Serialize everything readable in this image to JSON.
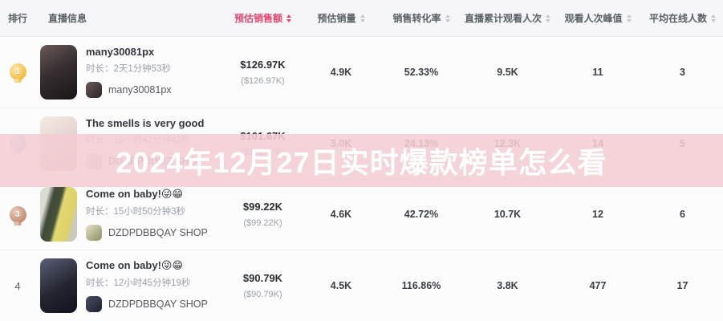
{
  "colors": {
    "accent": "#E0476F",
    "watermark_band": "#F2CDD4",
    "watermark_text": "#FFFFFF"
  },
  "overlay": {
    "title": "2024年12月27日实时爆款榜单怎么看"
  },
  "table": {
    "headers": {
      "rank": "排行",
      "live_info": "直播信息",
      "est_sales": "预估销售额",
      "est_volume": "预估销量",
      "conversion_rate": "销售转化率",
      "total_views": "直播累计观看人次",
      "peak_viewers": "观看人次峰值",
      "avg_online": "平均在线人数"
    },
    "rows": [
      {
        "rank": "1",
        "title": "many30081px",
        "duration": "时长：2天1分钟53秒",
        "shop": "many30081px",
        "sales": "$126.97K",
        "sales_secondary": "($126.97K)",
        "volume": "4.9K",
        "conversion": "52.33%",
        "views": "9.5K",
        "peak": "11",
        "avg_online": "3"
      },
      {
        "rank": "2",
        "title": "The smells is very good",
        "duration": "时长：15小时42分钟42秒",
        "shop": "DGAPPUDLIZ SHOP",
        "sales": "$101.67K",
        "sales_secondary": "($101.67K)",
        "volume": "3.0K",
        "conversion": "24.13%",
        "views": "12.3K",
        "peak": "14",
        "avg_online": "5"
      },
      {
        "rank": "3",
        "title": "Come on baby!😜😁",
        "duration": "时长：15小时50分钟3秒",
        "shop": "DZDPDBBQAY SHOP",
        "sales": "$99.22K",
        "sales_secondary": "($99.22K)",
        "volume": "4.6K",
        "conversion": "42.72%",
        "views": "10.7K",
        "peak": "12",
        "avg_online": "6"
      },
      {
        "rank": "4",
        "title": "Come on baby!😜😁",
        "duration": "时长：12小时45分钟19秒",
        "shop": "DZDPDBBQAY SHOP",
        "sales": "$90.79K",
        "sales_secondary": "($90.79K)",
        "volume": "4.5K",
        "conversion": "116.86%",
        "views": "3.8K",
        "peak": "477",
        "avg_online": "17"
      }
    ]
  }
}
